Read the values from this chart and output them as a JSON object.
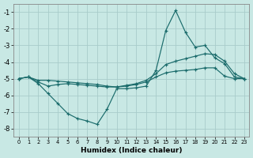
{
  "xlabel": "Humidex (Indice chaleur)",
  "xlim": [
    -0.5,
    23.5
  ],
  "ylim": [
    -8.5,
    -0.5
  ],
  "yticks": [
    -8,
    -7,
    -6,
    -5,
    -4,
    -3,
    -2,
    -1
  ],
  "xticks": [
    0,
    1,
    2,
    3,
    4,
    5,
    6,
    7,
    8,
    9,
    10,
    11,
    12,
    13,
    14,
    15,
    16,
    17,
    18,
    19,
    20,
    21,
    22,
    23
  ],
  "background_color": "#c8e8e4",
  "grid_color": "#a8ccca",
  "line_color": "#1a6b6b",
  "line1_x": [
    0,
    1,
    2,
    3,
    4,
    5,
    6,
    7,
    8,
    9,
    10,
    11,
    12,
    13,
    14,
    15,
    16,
    17,
    18,
    19,
    20,
    21,
    22,
    23
  ],
  "line1_y": [
    -5.0,
    -4.9,
    -5.3,
    -5.9,
    -6.5,
    -7.1,
    -7.4,
    -7.55,
    -7.75,
    -6.85,
    -5.6,
    -5.6,
    -5.55,
    -5.45,
    -4.5,
    -2.1,
    -0.9,
    -2.2,
    -3.1,
    -3.0,
    -3.75,
    -4.1,
    -4.9,
    -5.0
  ],
  "line2_x": [
    0,
    1,
    2,
    3,
    4,
    5,
    6,
    7,
    8,
    9,
    10,
    11,
    12,
    13,
    14,
    15,
    16,
    17,
    18,
    19,
    20,
    21,
    22,
    23
  ],
  "line2_y": [
    -5.0,
    -4.9,
    -5.2,
    -5.45,
    -5.35,
    -5.3,
    -5.35,
    -5.4,
    -5.45,
    -5.5,
    -5.5,
    -5.4,
    -5.3,
    -5.1,
    -4.7,
    -4.15,
    -3.95,
    -3.8,
    -3.65,
    -3.5,
    -3.55,
    -3.95,
    -4.7,
    -5.0
  ],
  "line3_x": [
    0,
    1,
    2,
    3,
    4,
    5,
    6,
    7,
    8,
    9,
    10,
    11,
    12,
    13,
    14,
    15,
    16,
    17,
    18,
    19,
    20,
    21,
    22,
    23
  ],
  "line3_y": [
    -5.0,
    -4.9,
    -5.1,
    -5.1,
    -5.15,
    -5.2,
    -5.25,
    -5.3,
    -5.35,
    -5.45,
    -5.5,
    -5.45,
    -5.35,
    -5.2,
    -4.9,
    -4.65,
    -4.55,
    -4.5,
    -4.45,
    -4.35,
    -4.35,
    -4.85,
    -5.0,
    -5.0
  ]
}
